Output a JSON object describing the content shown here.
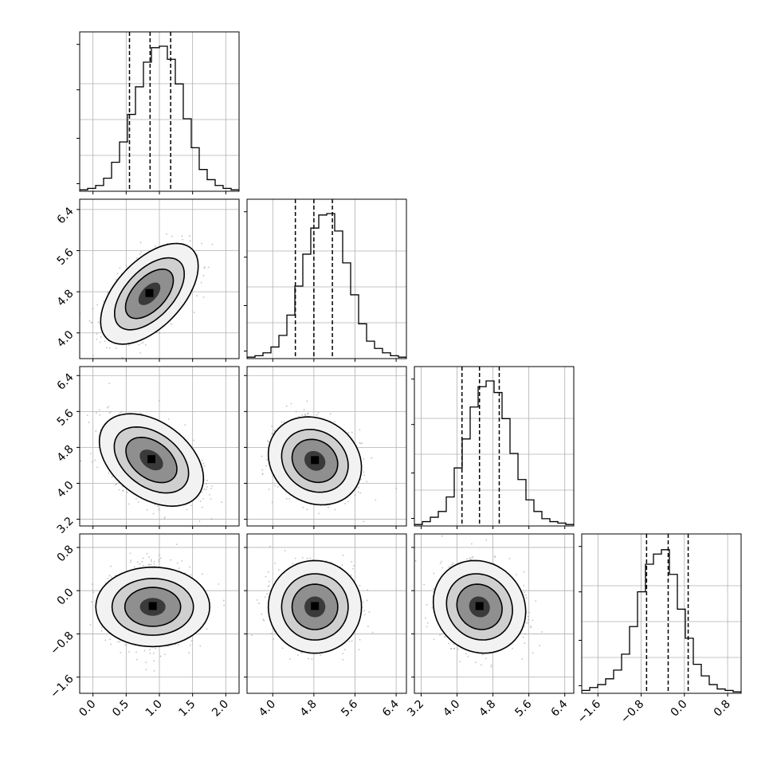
{
  "chart_data": {
    "type": "corner",
    "title": "",
    "grid": true,
    "parameters": [
      {
        "ticks": [
          0.0,
          0.5,
          1.0,
          1.5,
          2.0
        ],
        "tick_labels": [
          "0.0",
          "0.5",
          "1.0",
          "1.5",
          "2.0"
        ],
        "range": [
          -0.2,
          2.2
        ],
        "quantiles": [
          0.55,
          0.86,
          1.17
        ]
      },
      {
        "ticks": [
          4.0,
          4.8,
          5.6,
          6.4
        ],
        "tick_labels": [
          "4.0",
          "4.8",
          "5.6",
          "6.4"
        ],
        "range": [
          3.5,
          6.6
        ],
        "quantiles": [
          4.44,
          4.8,
          5.16
        ]
      },
      {
        "ticks": [
          3.2,
          4.0,
          4.8,
          5.6,
          6.4
        ],
        "tick_labels": [
          "3.2",
          "4.0",
          "4.8",
          "5.6",
          "6.4"
        ],
        "range": [
          3.05,
          6.6
        ],
        "quantiles": [
          4.11,
          4.5,
          4.94
        ]
      },
      {
        "ticks": [
          -1.6,
          -0.8,
          0.0,
          0.8
        ],
        "tick_labels": [
          "−1.6",
          "−0.8",
          "0.0",
          "0.8"
        ],
        "range": [
          -1.9,
          1.05
        ],
        "quantiles": [
          -0.7,
          -0.3,
          0.07
        ]
      }
    ],
    "histograms": [
      {
        "density": [
          0.01,
          0.02,
          0.04,
          0.09,
          0.2,
          0.34,
          0.53,
          0.72,
          0.89,
          0.99,
          1.0,
          0.91,
          0.74,
          0.5,
          0.3,
          0.15,
          0.08,
          0.04,
          0.02,
          0.01
        ]
      },
      {
        "density": [
          0.01,
          0.02,
          0.04,
          0.08,
          0.16,
          0.3,
          0.5,
          0.72,
          0.9,
          0.99,
          1.0,
          0.88,
          0.66,
          0.44,
          0.24,
          0.12,
          0.07,
          0.04,
          0.02,
          0.01
        ]
      },
      {
        "density": [
          0.01,
          0.03,
          0.06,
          0.1,
          0.2,
          0.4,
          0.6,
          0.82,
          0.96,
          1.0,
          0.92,
          0.74,
          0.5,
          0.32,
          0.18,
          0.1,
          0.05,
          0.03,
          0.02,
          0.01
        ]
      },
      {
        "density": [
          0.02,
          0.04,
          0.06,
          0.1,
          0.16,
          0.27,
          0.46,
          0.7,
          0.89,
          0.96,
          0.99,
          0.82,
          0.58,
          0.38,
          0.2,
          0.12,
          0.06,
          0.03,
          0.02,
          0.01
        ]
      }
    ],
    "pairs": [
      {
        "row": 1,
        "col": 0,
        "mean": [
          0.85,
          4.76
        ],
        "sd": [
          0.3,
          0.4
        ],
        "rho": 0.55
      },
      {
        "row": 2,
        "col": 0,
        "mean": [
          0.88,
          4.52
        ],
        "sd": [
          0.32,
          0.42
        ],
        "rho": -0.4
      },
      {
        "row": 2,
        "col": 1,
        "mean": [
          4.82,
          4.5
        ],
        "sd": [
          0.37,
          0.4
        ],
        "rho": -0.15
      },
      {
        "row": 3,
        "col": 0,
        "mean": [
          0.9,
          -0.3
        ],
        "sd": [
          0.3,
          0.35
        ],
        "rho": 0.0
      },
      {
        "row": 3,
        "col": 1,
        "mean": [
          4.82,
          -0.3
        ],
        "sd": [
          0.37,
          0.35
        ],
        "rho": 0.0
      },
      {
        "row": 3,
        "col": 2,
        "mean": [
          4.5,
          -0.3
        ],
        "sd": [
          0.42,
          0.35
        ],
        "rho": -0.1
      }
    ]
  }
}
